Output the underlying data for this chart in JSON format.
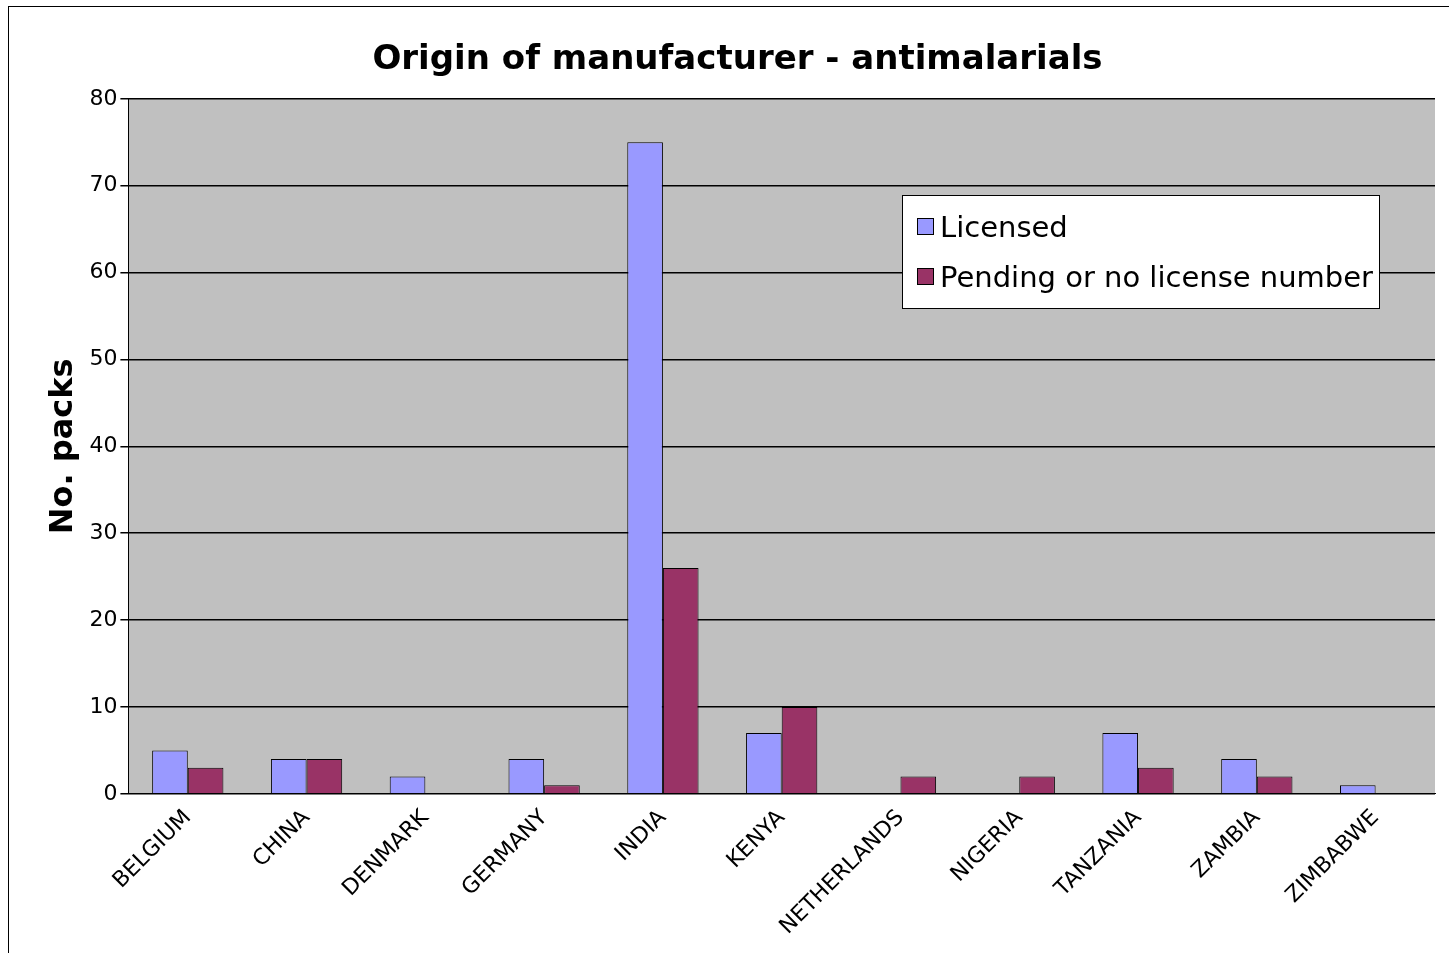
{
  "chart_data": {
    "type": "bar",
    "title": "Origin of manufacturer - antimalarials",
    "ylabel": "No. packs",
    "categories": [
      "BELGIUM",
      "CHINA",
      "DENMARK",
      "GERMANY",
      "INDIA",
      "KENYA",
      "NETHERLANDS",
      "NIGERIA",
      "TANZANIA",
      "ZAMBIA",
      "ZIMBABWE"
    ],
    "series": [
      {
        "name": "Licensed",
        "color": "#9999ff",
        "values": [
          5,
          4,
          2,
          4,
          75,
          7,
          0,
          0,
          7,
          4,
          1
        ]
      },
      {
        "name": "Pending or no license number",
        "color": "#993366",
        "values": [
          3,
          4,
          0,
          1,
          26,
          10,
          2,
          2,
          3,
          2,
          0
        ]
      }
    ],
    "ylim": [
      0,
      80
    ],
    "yticks": [
      0,
      10,
      20,
      30,
      40,
      50,
      60,
      70,
      80
    ],
    "grid": "y",
    "legend": "top right"
  }
}
